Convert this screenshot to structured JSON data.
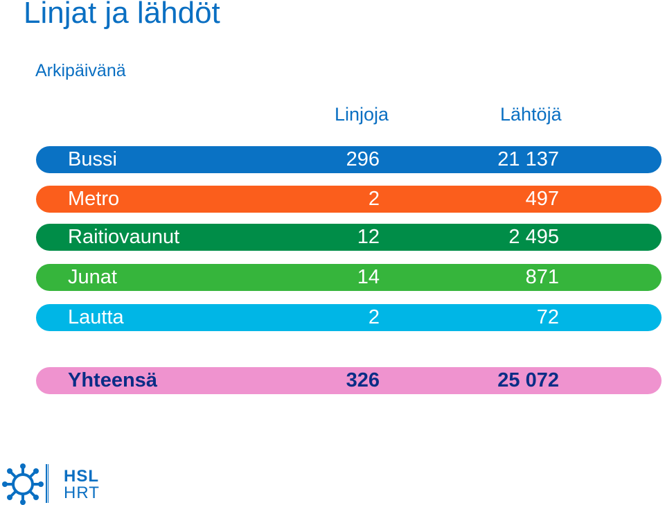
{
  "title": "Linjat ja lähdöt",
  "subtitle": "Arkipäivänä",
  "columns": {
    "lines": "Linjoja",
    "departures": "Lähtöjä"
  },
  "rows": [
    {
      "name": "Bussi",
      "lines": "296",
      "departures": "21 137",
      "color": "#0a72c4"
    },
    {
      "name": "Metro",
      "lines": "2",
      "departures": "497",
      "color": "#fb5e1c"
    },
    {
      "name": "Raitiovaunut",
      "lines": "12",
      "departures": "2 495",
      "color": "#008d48"
    },
    {
      "name": "Junat",
      "lines": "14",
      "departures": "871",
      "color": "#36b53c"
    },
    {
      "name": "Lautta",
      "lines": "2",
      "departures": "72",
      "color": "#00b6e6"
    }
  ],
  "total": {
    "name": "Yhteensä",
    "lines": "326",
    "departures": "25 072",
    "color": "#ef93cf"
  },
  "logo": {
    "top_text": "HSL",
    "bottom_text": "HRT",
    "icon": "hsl-logo-icon"
  }
}
